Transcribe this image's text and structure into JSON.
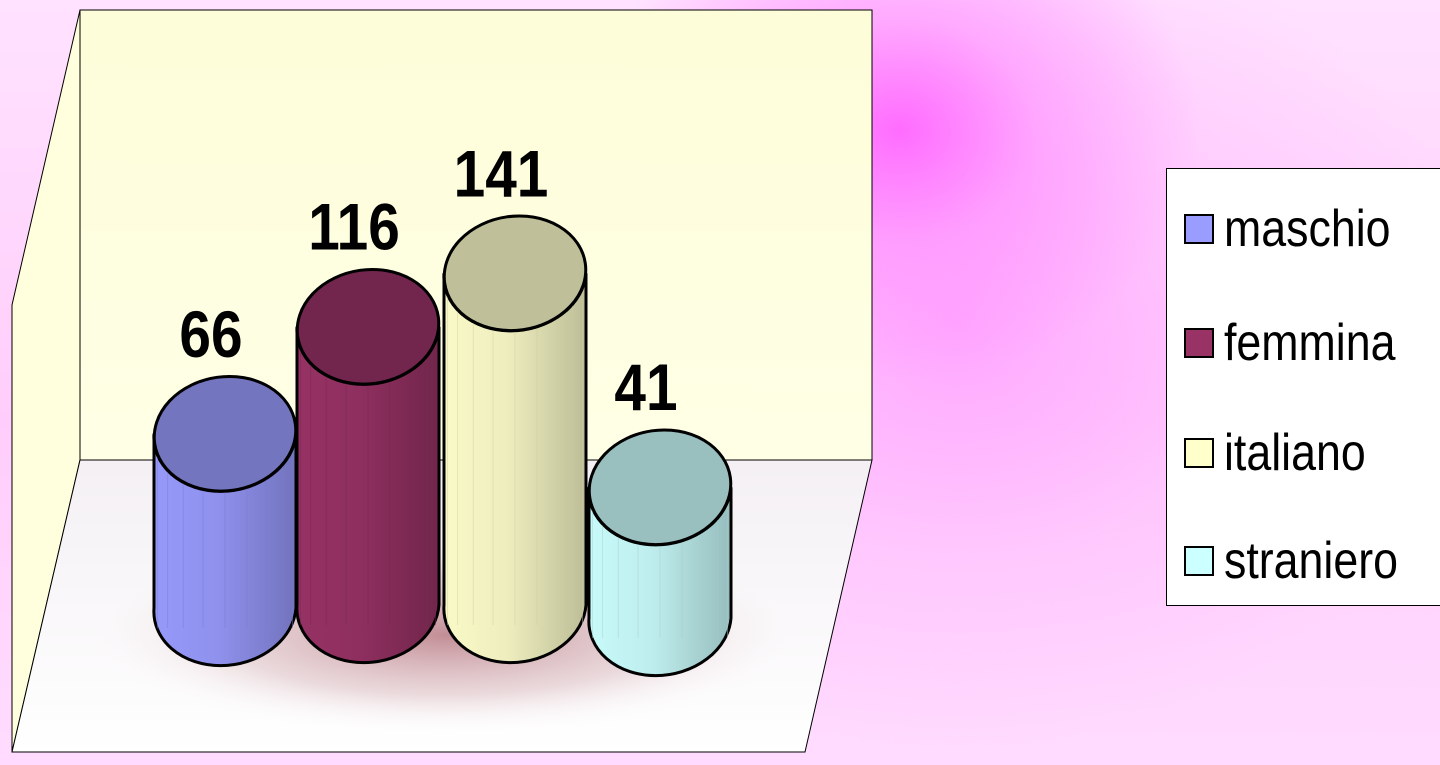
{
  "chart_data": {
    "type": "bar",
    "style": "3d-cylinder",
    "categories": [
      "maschio",
      "femmina",
      "italiano",
      "straniero"
    ],
    "values": [
      66,
      116,
      141,
      41
    ],
    "data_labels": [
      "66",
      "116",
      "141",
      "41"
    ],
    "colors": [
      "#9a9cff",
      "#993366",
      "#ffffcc",
      "#ccffff"
    ],
    "legend": {
      "placement": "right",
      "entries": [
        "maschio",
        "femmina",
        "italiano",
        "straniero"
      ]
    },
    "ylim": [
      0,
      160
    ],
    "grid": false
  }
}
